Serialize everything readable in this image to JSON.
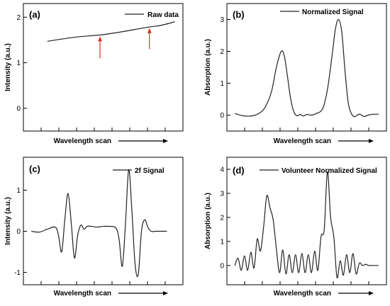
{
  "figure": {
    "panels": [
      "a",
      "b",
      "c",
      "d"
    ]
  },
  "chart_data": [
    {
      "id": "a",
      "type": "line",
      "panel_label": "(a)",
      "xlabel": "Wavelength scan",
      "ylabel": "Intensity (a.u.)",
      "ylim": [
        -0.5,
        2.3
      ],
      "xlim": [
        0,
        10
      ],
      "yticks": [
        0,
        1,
        2
      ],
      "xtick_count": 8,
      "xticks_labeled": false,
      "legend_position": "top-right",
      "series": [
        {
          "name": "Raw data",
          "x": [
            1.5,
            3.2,
            4.8,
            6.0,
            7.8,
            8.6,
            9.5
          ],
          "y": [
            1.47,
            1.56,
            1.61,
            1.67,
            1.78,
            1.82,
            1.9
          ]
        }
      ],
      "annotations": [
        {
          "type": "up-arrow",
          "x": 4.8,
          "y_from": 1.1,
          "y_to": 1.58,
          "color": "#e0302a"
        },
        {
          "type": "up-arrow",
          "x": 7.9,
          "y_from": 1.3,
          "y_to": 1.76,
          "color": "#e0302a"
        }
      ]
    },
    {
      "id": "b",
      "type": "line",
      "panel_label": "(b)",
      "xlabel": "Wavelength scan",
      "ylabel": "Absorption (a.u.)",
      "ylim": [
        -0.5,
        3.5
      ],
      "xlim": [
        0,
        10
      ],
      "yticks": [
        0,
        1,
        2,
        3
      ],
      "xtick_count": 8,
      "xticks_labeled": false,
      "legend_position": "top-right",
      "series": [
        {
          "name": "Normalized Signal",
          "x": [
            0.5,
            1.0,
            1.5,
            2.0,
            2.4,
            2.8,
            3.1,
            3.4,
            3.6,
            3.8,
            4.0,
            4.2,
            4.4,
            4.6,
            4.8,
            5.0,
            5.3,
            5.6,
            6.0,
            6.3,
            6.6,
            6.8,
            7.0,
            7.2,
            7.4,
            7.6,
            7.8,
            8.0,
            8.3,
            8.6,
            9.0,
            9.5
          ],
          "y": [
            0.05,
            -0.02,
            -0.03,
            0.05,
            0.25,
            0.75,
            1.5,
            2.0,
            1.85,
            1.2,
            0.5,
            0.1,
            -0.02,
            0.02,
            -0.03,
            0.02,
            0.0,
            0.05,
            0.2,
            0.8,
            1.9,
            2.7,
            3.0,
            2.6,
            1.4,
            0.4,
            0.05,
            -0.05,
            0.03,
            -0.04,
            0.02,
            0.03
          ]
        }
      ]
    },
    {
      "id": "c",
      "type": "line",
      "panel_label": "(c)",
      "xlabel": "Wavelength scan",
      "ylabel": "Intensity (a.u.)",
      "ylim": [
        -1.3,
        1.8
      ],
      "xlim": [
        0,
        10
      ],
      "yticks": [
        -1,
        0,
        1
      ],
      "xtick_count": 8,
      "xticks_labeled": false,
      "legend_position": "top-right",
      "series": [
        {
          "name": "2f Signal",
          "x": [
            0.5,
            1.0,
            1.5,
            2.0,
            2.2,
            2.4,
            2.6,
            2.8,
            3.0,
            3.2,
            3.4,
            3.6,
            3.8,
            4.0,
            4.3,
            4.6,
            5.0,
            5.4,
            5.8,
            6.0,
            6.2,
            6.4,
            6.6,
            6.8,
            7.0,
            7.2,
            7.4,
            7.6,
            7.8,
            8.0,
            8.3,
            8.6,
            9.0
          ],
          "y": [
            0.0,
            -0.02,
            0.05,
            0.1,
            -0.1,
            -0.5,
            0.3,
            0.92,
            0.2,
            -0.65,
            -0.1,
            0.15,
            0.05,
            0.12,
            0.12,
            0.1,
            0.12,
            0.12,
            0.08,
            -0.2,
            -0.85,
            0.2,
            1.5,
            0.5,
            -0.8,
            -1.05,
            0.0,
            0.28,
            0.1,
            0.0,
            0.0,
            0.0,
            0.0
          ]
        }
      ]
    },
    {
      "id": "d",
      "type": "line",
      "panel_label": "(d)",
      "xlabel": "Wavelength scan",
      "ylabel": "Absorption (a.u.)",
      "ylim": [
        -0.8,
        4.5
      ],
      "xlim": [
        0,
        10
      ],
      "yticks": [
        0,
        1,
        2,
        3,
        4
      ],
      "xtick_count": 8,
      "xticks_labeled": false,
      "legend_position": "top-right",
      "series": [
        {
          "name": "Volunteer Normalized Signal",
          "x": [
            0.5,
            0.7,
            0.9,
            1.1,
            1.3,
            1.5,
            1.7,
            1.9,
            2.1,
            2.3,
            2.5,
            2.7,
            2.9,
            3.1,
            3.3,
            3.5,
            3.7,
            3.9,
            4.1,
            4.3,
            4.5,
            4.7,
            4.9,
            5.1,
            5.3,
            5.5,
            5.7,
            5.9,
            6.1,
            6.3,
            6.5,
            6.7,
            6.9,
            7.1,
            7.3,
            7.5,
            7.7,
            7.9,
            8.1,
            8.3,
            8.5,
            8.7,
            8.9,
            9.1,
            9.3,
            9.5
          ],
          "y": [
            0.0,
            0.3,
            -0.2,
            0.4,
            -0.2,
            0.55,
            -0.1,
            1.1,
            0.6,
            1.6,
            2.9,
            2.4,
            1.9,
            0.7,
            -0.3,
            0.65,
            -0.35,
            0.45,
            -0.3,
            0.45,
            -0.3,
            0.5,
            -0.3,
            0.45,
            -0.3,
            0.6,
            -0.2,
            1.2,
            1.5,
            3.9,
            2.0,
            1.2,
            -0.5,
            0.2,
            -0.4,
            0.45,
            -0.3,
            0.5,
            -0.35,
            0.1,
            0.0,
            0.05,
            0.0,
            0.0,
            0.0,
            0.0
          ]
        }
      ]
    }
  ]
}
